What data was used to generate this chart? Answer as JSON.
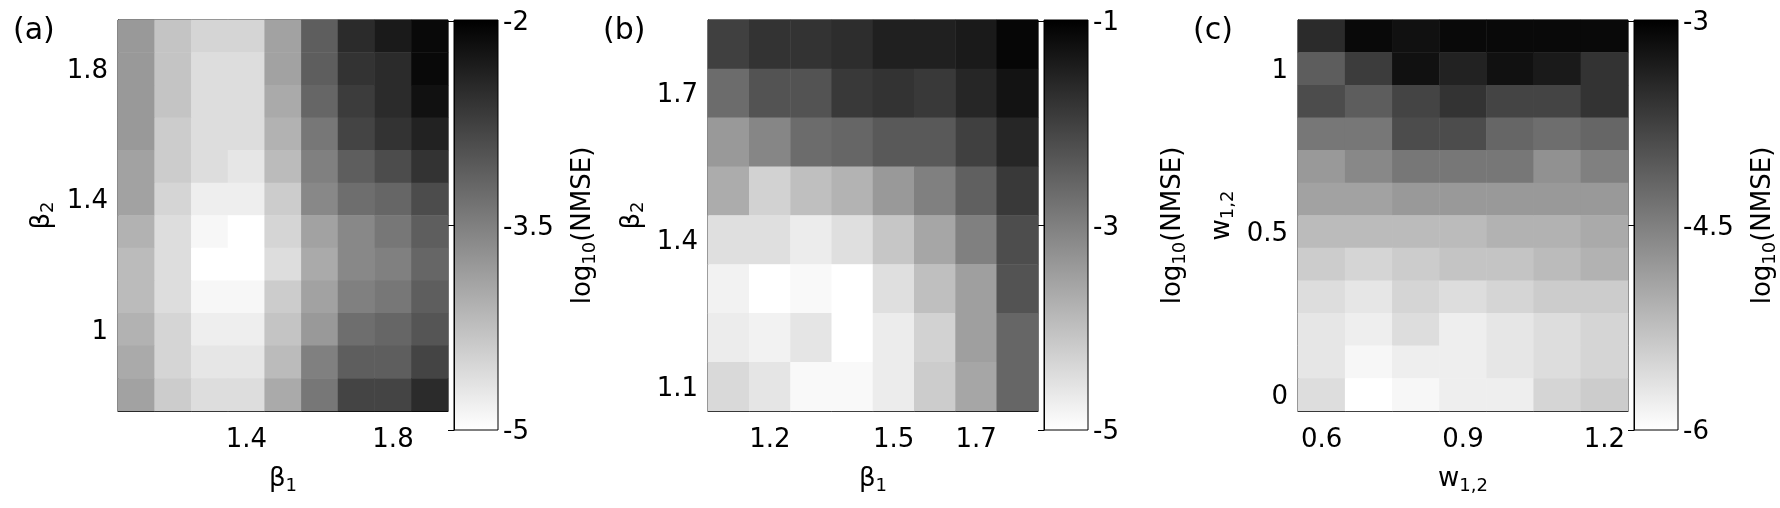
{
  "chart_data": [
    {
      "type": "heatmap",
      "title": "(a)",
      "xlabel": "β$_{1}$",
      "ylabel": "β$_{2}$",
      "clabel": "log$_{10}$(NMSE)",
      "categories": [
        null,
        null,
        null,
        "1.4",
        null,
        null,
        null,
        "1.8",
        null
      ],
      "y_categories": [
        null,
        "1.8",
        null,
        null,
        null,
        "1.4",
        null,
        null,
        null,
        "1",
        null,
        null
      ],
      "cells": [
        [
          -3.8,
          -4.3,
          -4.5,
          -4.5,
          -3.9,
          -3.1,
          -2.5,
          -2.3,
          -2.1
        ],
        [
          -3.8,
          -4.3,
          -4.6,
          -4.6,
          -3.9,
          -3.1,
          -2.6,
          -2.5,
          -2.1
        ],
        [
          -3.8,
          -4.3,
          -4.6,
          -4.6,
          -4.0,
          -3.2,
          -2.7,
          -2.5,
          -2.2
        ],
        [
          -3.8,
          -4.4,
          -4.6,
          -4.6,
          -4.1,
          -3.4,
          -2.8,
          -2.6,
          -2.4
        ],
        [
          -3.9,
          -4.4,
          -4.6,
          -4.7,
          -4.2,
          -3.5,
          -3.1,
          -2.9,
          -2.6
        ],
        [
          -3.9,
          -4.5,
          -4.8,
          -4.8,
          -4.4,
          -3.6,
          -3.3,
          -3.2,
          -2.9
        ],
        [
          -4.1,
          -4.6,
          -4.9,
          -5.0,
          -4.5,
          -3.9,
          -3.6,
          -3.4,
          -3.1
        ],
        [
          -4.2,
          -4.6,
          -5.0,
          -5.0,
          -4.6,
          -4.0,
          -3.6,
          -3.5,
          -3.2
        ],
        [
          -4.2,
          -4.6,
          -4.9,
          -4.9,
          -4.4,
          -3.9,
          -3.5,
          -3.4,
          -3.1
        ],
        [
          -4.1,
          -4.5,
          -4.8,
          -4.8,
          -4.3,
          -3.8,
          -3.3,
          -3.2,
          -3.0
        ],
        [
          -4.0,
          -4.5,
          -4.7,
          -4.7,
          -4.2,
          -3.5,
          -3.1,
          -3.1,
          -2.8
        ],
        [
          -3.9,
          -4.4,
          -4.6,
          -4.6,
          -4.0,
          -3.4,
          -2.8,
          -2.8,
          -2.5
        ]
      ],
      "clim": [
        -5,
        -2
      ],
      "cticks": [
        -5,
        -3.5,
        -2
      ]
    },
    {
      "type": "heatmap",
      "title": "(b)",
      "xlabel": "β$_{1}$",
      "ylabel": "β$_{2}$",
      "clabel": "log$_{10}$(NMSE)",
      "categories": [
        null,
        "1.2",
        null,
        null,
        "1.5",
        null,
        "1.7",
        null
      ],
      "y_categories": [
        null,
        "1.7",
        null,
        null,
        "1.4",
        null,
        null,
        "1.1"
      ],
      "cells": [
        [
          -2.0,
          -1.8,
          -1.8,
          -1.7,
          -1.5,
          -1.5,
          -1.4,
          -1.1
        ],
        [
          -2.7,
          -2.3,
          -2.3,
          -1.9,
          -1.8,
          -1.9,
          -1.6,
          -1.3
        ],
        [
          -3.4,
          -3.1,
          -2.7,
          -2.6,
          -2.4,
          -2.4,
          -2.0,
          -1.6
        ],
        [
          -3.7,
          -4.3,
          -4.0,
          -3.8,
          -3.4,
          -3.0,
          -2.5,
          -1.9
        ],
        [
          -4.5,
          -4.5,
          -4.7,
          -4.5,
          -4.1,
          -3.6,
          -3.0,
          -2.2
        ],
        [
          -4.8,
          -5.0,
          -4.9,
          -5.0,
          -4.5,
          -4.0,
          -3.5,
          -2.3
        ],
        [
          -4.7,
          -4.8,
          -4.6,
          -5.0,
          -4.7,
          -4.3,
          -3.5,
          -2.6
        ],
        [
          -4.4,
          -4.6,
          -4.9,
          -4.9,
          -4.7,
          -4.2,
          -3.6,
          -2.6
        ]
      ],
      "clim": [
        -5,
        -1
      ],
      "cticks": [
        -5,
        -3,
        -1
      ]
    },
    {
      "type": "heatmap",
      "title": "(c)",
      "xlabel": "w$_{1,2}$",
      "ylabel": "w$_{1,2}$",
      "clabel": "log$_{10}$(NMSE)",
      "categories": [
        "0.6",
        null,
        null,
        "0.9",
        null,
        null,
        "1.2"
      ],
      "y_categories": [
        null,
        "1",
        null,
        null,
        null,
        null,
        "0.5",
        null,
        null,
        null,
        null,
        "0"
      ],
      "cells": [
        [
          -3.5,
          -3.1,
          -3.2,
          -3.1,
          -3.1,
          -3.1,
          -3.1
        ],
        [
          -4.1,
          -3.7,
          -3.2,
          -3.4,
          -3.2,
          -3.3,
          -3.6
        ],
        [
          -3.9,
          -4.1,
          -3.8,
          -3.6,
          -3.8,
          -3.8,
          -3.6
        ],
        [
          -4.4,
          -4.4,
          -3.9,
          -3.9,
          -4.2,
          -4.3,
          -4.2
        ],
        [
          -4.8,
          -4.6,
          -4.4,
          -4.4,
          -4.4,
          -4.7,
          -4.5
        ],
        [
          -4.9,
          -4.9,
          -4.8,
          -4.8,
          -4.8,
          -4.8,
          -4.8
        ],
        [
          -5.2,
          -5.2,
          -5.2,
          -5.2,
          -5.1,
          -5.1,
          -5.0
        ],
        [
          -5.4,
          -5.5,
          -5.4,
          -5.3,
          -5.3,
          -5.2,
          -5.1
        ],
        [
          -5.6,
          -5.7,
          -5.5,
          -5.6,
          -5.5,
          -5.4,
          -5.4
        ],
        [
          -5.7,
          -5.8,
          -5.6,
          -5.8,
          -5.7,
          -5.6,
          -5.5
        ],
        [
          -5.7,
          -5.9,
          -5.8,
          -5.8,
          -5.7,
          -5.6,
          -5.5
        ],
        [
          -5.6,
          -6.0,
          -5.9,
          -5.8,
          -5.8,
          -5.5,
          -5.4
        ]
      ],
      "clim": [
        -6,
        -3
      ],
      "cticks": [
        -6,
        -4.5,
        -3
      ]
    }
  ]
}
